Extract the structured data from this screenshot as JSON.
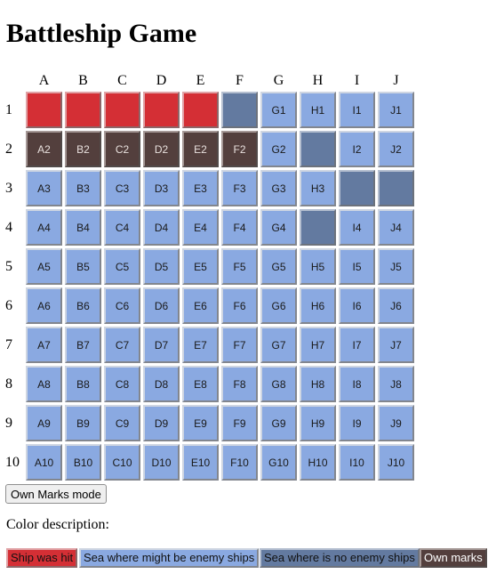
{
  "title": "Battleship Game",
  "columns": [
    "A",
    "B",
    "C",
    "D",
    "E",
    "F",
    "G",
    "H",
    "I",
    "J"
  ],
  "rows": [
    "1",
    "2",
    "3",
    "4",
    "5",
    "6",
    "7",
    "8",
    "9",
    "10"
  ],
  "board": [
    [
      "hit",
      "hit",
      "hit",
      "hit",
      "hit",
      "empty",
      "sea",
      "sea",
      "sea",
      "sea"
    ],
    [
      "own",
      "own",
      "own",
      "own",
      "own",
      "own",
      "sea",
      "empty",
      "sea",
      "sea"
    ],
    [
      "sea",
      "sea",
      "sea",
      "sea",
      "sea",
      "sea",
      "sea",
      "sea",
      "empty",
      "empty"
    ],
    [
      "sea",
      "sea",
      "sea",
      "sea",
      "sea",
      "sea",
      "sea",
      "empty",
      "sea",
      "sea"
    ],
    [
      "sea",
      "sea",
      "sea",
      "sea",
      "sea",
      "sea",
      "sea",
      "sea",
      "sea",
      "sea"
    ],
    [
      "sea",
      "sea",
      "sea",
      "sea",
      "sea",
      "sea",
      "sea",
      "sea",
      "sea",
      "sea"
    ],
    [
      "sea",
      "sea",
      "sea",
      "sea",
      "sea",
      "sea",
      "sea",
      "sea",
      "sea",
      "sea"
    ],
    [
      "sea",
      "sea",
      "sea",
      "sea",
      "sea",
      "sea",
      "sea",
      "sea",
      "sea",
      "sea"
    ],
    [
      "sea",
      "sea",
      "sea",
      "sea",
      "sea",
      "sea",
      "sea",
      "sea",
      "sea",
      "sea"
    ],
    [
      "sea",
      "sea",
      "sea",
      "sea",
      "sea",
      "sea",
      "sea",
      "sea",
      "sea",
      "sea"
    ]
  ],
  "mode_button": "Own Marks mode",
  "color_description_title": "Color description:",
  "legend": {
    "hit": "Ship was hit",
    "sea": "Sea where might be enemy ships",
    "empty": "Sea where is no enemy ships",
    "own": "Own marks"
  },
  "colors": {
    "hit": "#d42f35",
    "sea": "#8aa9e1",
    "empty": "#637aa0",
    "own": "#533f3d"
  }
}
